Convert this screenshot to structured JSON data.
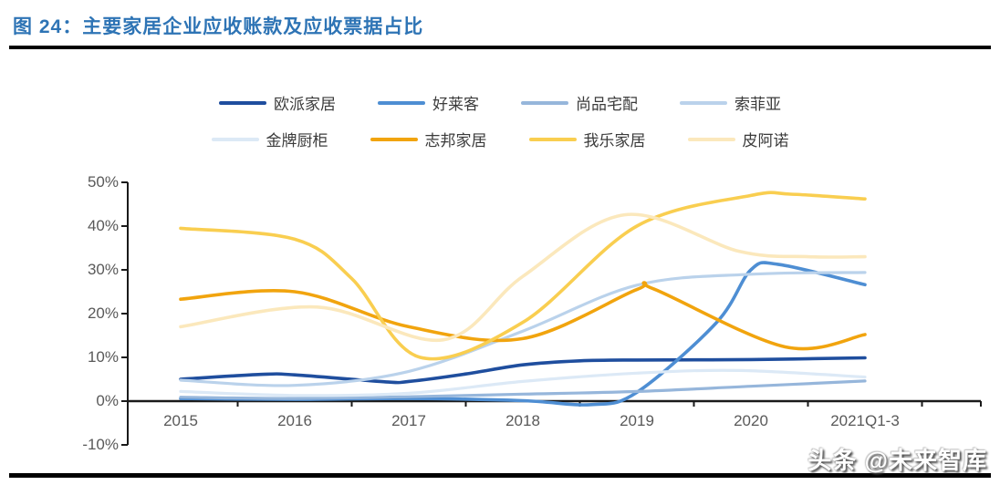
{
  "header": {
    "title": "图 24：主要家居企业应收账款及应收票据占比"
  },
  "watermark": {
    "text": "头条 @未来智库"
  },
  "colors": {
    "title": "#2E74B5",
    "axis_text": "#595959",
    "axis_line": "#1a1a1a",
    "rule": "#000000"
  },
  "chart_data": {
    "type": "line",
    "title": "主要家居企业应收账款及应收票据占比",
    "categories": [
      "2015",
      "2016",
      "2017",
      "2018",
      "2019",
      "2020",
      "2021Q1-3"
    ],
    "y_ticks": [
      "50%",
      "40%",
      "30%",
      "20%",
      "10%",
      "0%",
      "-10%"
    ],
    "ylim": [
      -10,
      50
    ],
    "unit": "%",
    "grid": "off",
    "legend_position": "top",
    "series": [
      {
        "name": "欧派家居",
        "color": "#1F4E9E",
        "width": 3.6,
        "values": [
          5.0,
          6.0,
          4.5,
          8.3,
          9.4,
          9.5,
          9.9
        ],
        "draw_points": [
          [
            0,
            5.0
          ],
          [
            0.7,
            6.1
          ],
          [
            1,
            6.0
          ],
          [
            1.8,
            4.4
          ],
          [
            2,
            4.5
          ],
          [
            2.5,
            6.2
          ],
          [
            3,
            8.3
          ],
          [
            3.5,
            9.2
          ],
          [
            4,
            9.4
          ],
          [
            5,
            9.5
          ],
          [
            6,
            9.9
          ]
        ]
      },
      {
        "name": "好莱客",
        "color": "#4E8ED3",
        "width": 3.6,
        "values": [
          0.6,
          0.4,
          0.6,
          0.1,
          2.0,
          30.0,
          26.6
        ],
        "draw_points": [
          [
            0,
            0.6
          ],
          [
            1,
            0.4
          ],
          [
            2,
            0.6
          ],
          [
            3,
            0.1
          ],
          [
            3.6,
            -0.8
          ],
          [
            4,
            2.0
          ],
          [
            4.7,
            18.0
          ],
          [
            5,
            30.0
          ],
          [
            5.25,
            31.2
          ],
          [
            6,
            26.6
          ]
        ]
      },
      {
        "name": "尚品宅配",
        "color": "#96B6DB",
        "width": 3.2,
        "values": [
          0.9,
          0.6,
          1.0,
          1.6,
          2.2,
          3.4,
          4.6
        ],
        "draw_points": [
          [
            0,
            0.9
          ],
          [
            1,
            0.6
          ],
          [
            2,
            1.0
          ],
          [
            3,
            1.6
          ],
          [
            4,
            2.2
          ],
          [
            5,
            3.4
          ],
          [
            6,
            4.6
          ]
        ]
      },
      {
        "name": "索菲亚",
        "color": "#BAD2EB",
        "width": 3.2,
        "values": [
          4.8,
          3.6,
          6.8,
          16.0,
          26.5,
          29.0,
          29.4
        ],
        "draw_points": [
          [
            0,
            4.8
          ],
          [
            1,
            3.6
          ],
          [
            2,
            6.8
          ],
          [
            3,
            16.0
          ],
          [
            4,
            26.5
          ],
          [
            5,
            29.0
          ],
          [
            6,
            29.4
          ]
        ]
      },
      {
        "name": "金牌厨柜",
        "color": "#DCE9F6",
        "width": 3.2,
        "values": [
          2.2,
          1.3,
          1.8,
          4.5,
          6.4,
          7.0,
          5.5
        ],
        "draw_points": [
          [
            0,
            2.2
          ],
          [
            1,
            1.3
          ],
          [
            2,
            1.8
          ],
          [
            3,
            4.5
          ],
          [
            4,
            6.4
          ],
          [
            4.9,
            7.0
          ],
          [
            6,
            5.5
          ]
        ]
      },
      {
        "name": "志邦家居",
        "color": "#F1A40E",
        "width": 3.6,
        "values": [
          23.3,
          25.0,
          17.0,
          14.3,
          25.5,
          13.0,
          15.2
        ],
        "draw_points": [
          [
            0,
            23.3
          ],
          [
            1,
            25.0
          ],
          [
            2,
            17.0
          ],
          [
            3,
            14.3
          ],
          [
            4,
            25.5
          ],
          [
            4.15,
            25.6
          ],
          [
            5.3,
            12.4
          ],
          [
            6,
            15.2
          ]
        ]
      },
      {
        "name": "我乐家居",
        "color": "#F9CE50",
        "width": 3.6,
        "values": [
          39.5,
          37.0,
          11.0,
          18.0,
          40.0,
          47.0,
          46.2
        ],
        "draw_points": [
          [
            0,
            39.5
          ],
          [
            1,
            37.0
          ],
          [
            1.5,
            28.0
          ],
          [
            2.1,
            10.0
          ],
          [
            3,
            18.0
          ],
          [
            4,
            40.0
          ],
          [
            5,
            47.0
          ],
          [
            5.35,
            47.3
          ],
          [
            6,
            46.2
          ]
        ]
      },
      {
        "name": "皮阿诺",
        "color": "#FBE8BC",
        "width": 3.6,
        "values": [
          17.0,
          21.2,
          14.8,
          28.5,
          42.0,
          34.2,
          33.0
        ],
        "draw_points": [
          [
            0,
            17.0
          ],
          [
            1.2,
            21.5
          ],
          [
            2.3,
            14.0
          ],
          [
            3,
            28.5
          ],
          [
            3.9,
            42.6
          ],
          [
            4.9,
            34.2
          ],
          [
            5.5,
            33.0
          ],
          [
            6,
            33.0
          ]
        ]
      }
    ]
  }
}
